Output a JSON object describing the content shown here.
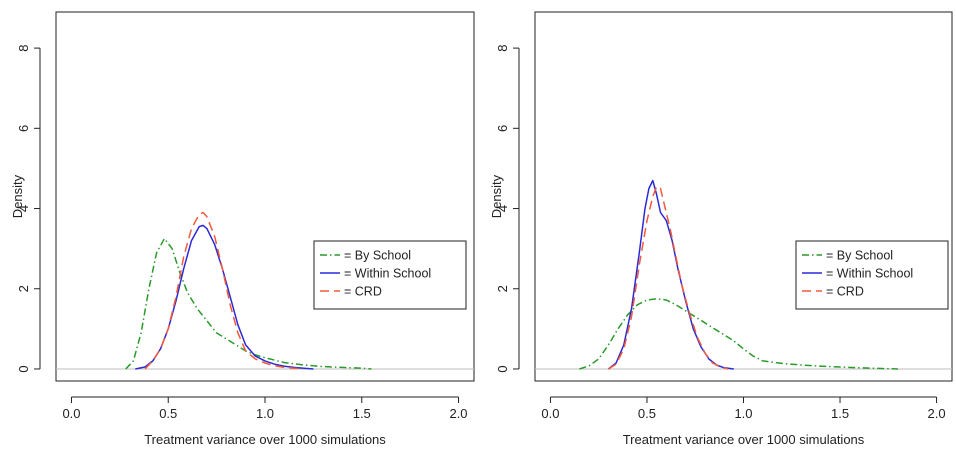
{
  "chart_data": [
    {
      "type": "line",
      "title": "",
      "xlabel": "Treatment variance over 1000 simulations",
      "ylabel": "Density",
      "xlim": [
        -0.08,
        2.08
      ],
      "ylim": [
        -0.3,
        8.9
      ],
      "xticks": [
        0.0,
        0.5,
        1.0,
        1.5,
        2.0
      ],
      "xtick_labels": [
        "0.0",
        "0.5",
        "1.0",
        "1.5",
        "2.0"
      ],
      "yticks": [
        0,
        2,
        4,
        6,
        8
      ],
      "ytick_labels": [
        "0",
        "2",
        "4",
        "6",
        "8"
      ],
      "grid": false,
      "baseline": 0,
      "legend": {
        "position": "right",
        "entries": [
          "= By School",
          "= Within School",
          "= CRD"
        ]
      },
      "series": [
        {
          "name": "= By School",
          "color": "#2a9a2a",
          "dash": "dashdot",
          "x": [
            0.28,
            0.32,
            0.36,
            0.4,
            0.44,
            0.48,
            0.52,
            0.56,
            0.6,
            0.65,
            0.7,
            0.75,
            0.8,
            0.85,
            0.9,
            0.95,
            1.0,
            1.1,
            1.2,
            1.3,
            1.4,
            1.5,
            1.55
          ],
          "y": [
            0.0,
            0.2,
            0.9,
            2.0,
            2.9,
            3.25,
            3.0,
            2.4,
            1.9,
            1.5,
            1.2,
            0.9,
            0.75,
            0.6,
            0.45,
            0.35,
            0.28,
            0.16,
            0.1,
            0.06,
            0.04,
            0.02,
            0.0
          ]
        },
        {
          "name": "= Within School",
          "color": "#2a2ad8",
          "dash": "solid",
          "x": [
            0.33,
            0.38,
            0.42,
            0.46,
            0.5,
            0.54,
            0.58,
            0.62,
            0.66,
            0.68,
            0.7,
            0.74,
            0.78,
            0.82,
            0.86,
            0.9,
            0.95,
            1.0,
            1.05,
            1.1,
            1.15,
            1.2,
            1.25
          ],
          "y": [
            0.0,
            0.05,
            0.2,
            0.5,
            1.0,
            1.7,
            2.5,
            3.2,
            3.55,
            3.58,
            3.5,
            3.1,
            2.5,
            1.8,
            1.1,
            0.6,
            0.32,
            0.2,
            0.12,
            0.07,
            0.04,
            0.02,
            0.0
          ]
        },
        {
          "name": "= CRD",
          "color": "#f25a3a",
          "dash": "dashed",
          "x": [
            0.38,
            0.42,
            0.46,
            0.5,
            0.54,
            0.58,
            0.62,
            0.66,
            0.68,
            0.7,
            0.74,
            0.78,
            0.82,
            0.86,
            0.9,
            0.95,
            1.0,
            1.05,
            1.1,
            1.15,
            1.2
          ],
          "y": [
            0.0,
            0.2,
            0.5,
            1.0,
            1.8,
            2.8,
            3.5,
            3.85,
            3.9,
            3.8,
            3.3,
            2.5,
            1.6,
            0.9,
            0.45,
            0.25,
            0.15,
            0.08,
            0.04,
            0.02,
            0.0
          ]
        }
      ]
    },
    {
      "type": "line",
      "title": "",
      "xlabel": "Treatment variance over 1000 simulations",
      "ylabel": "Density",
      "xlim": [
        -0.08,
        2.08
      ],
      "ylim": [
        -0.3,
        8.9
      ],
      "xticks": [
        0.0,
        0.5,
        1.0,
        1.5,
        2.0
      ],
      "xtick_labels": [
        "0.0",
        "0.5",
        "1.0",
        "1.5",
        "2.0"
      ],
      "yticks": [
        0,
        2,
        4,
        6,
        8
      ],
      "ytick_labels": [
        "0",
        "2",
        "4",
        "6",
        "8"
      ],
      "grid": false,
      "baseline": 0,
      "legend": {
        "position": "right",
        "entries": [
          "= By School",
          "= Within School",
          "= CRD"
        ]
      },
      "series": [
        {
          "name": "= By School",
          "color": "#2a9a2a",
          "dash": "dashdot",
          "x": [
            0.15,
            0.2,
            0.25,
            0.3,
            0.35,
            0.4,
            0.45,
            0.5,
            0.55,
            0.6,
            0.65,
            0.7,
            0.75,
            0.8,
            0.85,
            0.9,
            0.95,
            1.0,
            1.05,
            1.1,
            1.2,
            1.3,
            1.4,
            1.5,
            1.6,
            1.7,
            1.8
          ],
          "y": [
            0.0,
            0.08,
            0.25,
            0.6,
            1.0,
            1.35,
            1.6,
            1.72,
            1.75,
            1.72,
            1.6,
            1.45,
            1.3,
            1.15,
            1.0,
            0.85,
            0.7,
            0.5,
            0.32,
            0.2,
            0.14,
            0.1,
            0.07,
            0.05,
            0.03,
            0.015,
            0.0
          ]
        },
        {
          "name": "= Within School",
          "color": "#2a2ad8",
          "dash": "solid",
          "x": [
            0.3,
            0.34,
            0.38,
            0.42,
            0.46,
            0.49,
            0.51,
            0.53,
            0.55,
            0.57,
            0.6,
            0.63,
            0.66,
            0.7,
            0.74,
            0.78,
            0.82,
            0.86,
            0.9,
            0.95
          ],
          "y": [
            0.0,
            0.15,
            0.6,
            1.5,
            2.9,
            4.0,
            4.5,
            4.7,
            4.35,
            3.9,
            3.7,
            3.2,
            2.5,
            1.7,
            1.0,
            0.55,
            0.25,
            0.1,
            0.03,
            0.0
          ]
        },
        {
          "name": "= CRD",
          "color": "#f25a3a",
          "dash": "dashed",
          "x": [
            0.3,
            0.34,
            0.38,
            0.42,
            0.46,
            0.5,
            0.53,
            0.55,
            0.57,
            0.59,
            0.62,
            0.65,
            0.68,
            0.72,
            0.76,
            0.8,
            0.84,
            0.88,
            0.92
          ],
          "y": [
            0.0,
            0.12,
            0.5,
            1.3,
            2.6,
            3.7,
            4.3,
            4.55,
            4.5,
            4.1,
            3.5,
            2.8,
            2.1,
            1.4,
            0.8,
            0.4,
            0.15,
            0.05,
            0.0
          ]
        }
      ]
    }
  ]
}
